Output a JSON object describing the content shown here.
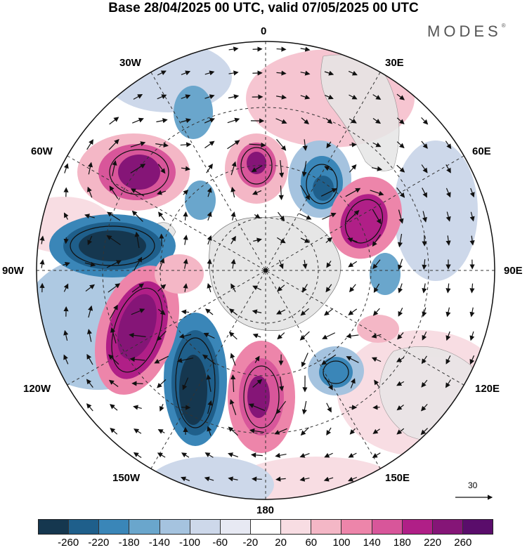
{
  "header": {
    "title": "Base 28/04/2025 00 UTC, valid 07/05/2025 00 UTC",
    "brand": "MODES"
  },
  "map": {
    "longitude_labels": {
      "lon_0": "0",
      "lon_30e": "30E",
      "lon_60e": "60E",
      "lon_90e": "90E",
      "lon_120e": "120E",
      "lon_150e": "150E",
      "lon_180": "180",
      "lon_150w": "150W",
      "lon_120w": "120W",
      "lon_90w": "90W",
      "lon_60w": "60W",
      "lon_30w": "30W"
    },
    "reference_vector": "30",
    "land_color": "#e6e6e6"
  },
  "colorbar": {
    "colors": [
      "#15374f",
      "#1f5f8b",
      "#3a86b8",
      "#6aa6cc",
      "#a5c3df",
      "#cdd8ea",
      "#e7e9f3",
      "#ffffff",
      "#f8dde3",
      "#f4b7c6",
      "#ed85aa",
      "#d8569a",
      "#b01f87",
      "#851577",
      "#5a0d6b"
    ],
    "ticks": [
      "-260",
      "-220",
      "-180",
      "-140",
      "-100",
      "-60",
      "-20",
      "20",
      "60",
      "100",
      "140",
      "180",
      "220",
      "260"
    ]
  }
}
